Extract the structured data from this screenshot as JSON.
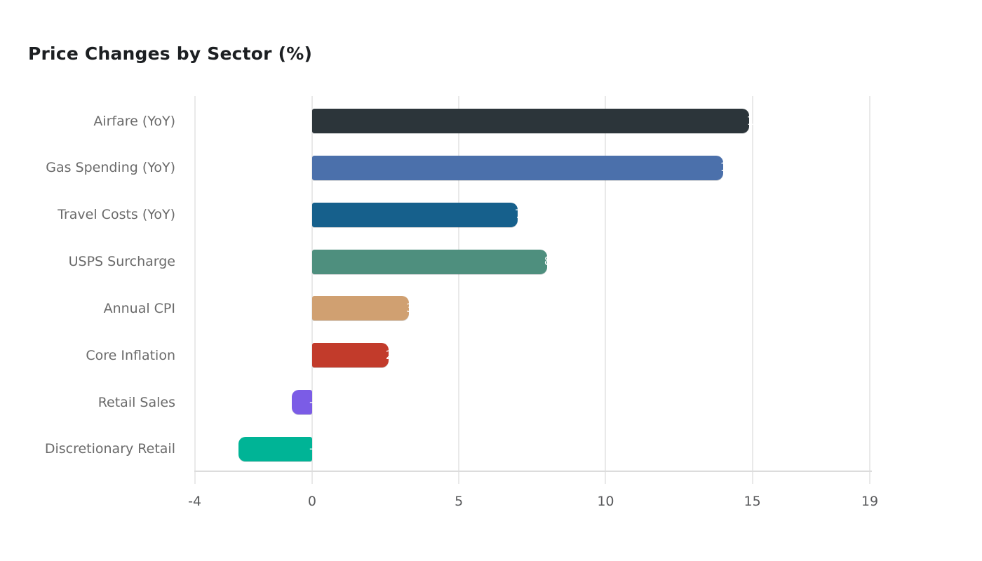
{
  "title": "Price Changes by Sector (%)",
  "colors": {
    "background": "#ffffff",
    "title_text": "#1c1f22",
    "category_label_text": "#6a6a6a",
    "tick_label_text": "#58595b",
    "gridline": "#e9e9e9",
    "axis_line": "#dcdcdc",
    "bar_value_text": "#ffffff"
  },
  "chart_data": {
    "type": "bar",
    "orientation": "horizontal",
    "title": "Price Changes by Sector (%)",
    "categories": [
      "Airfare (YoY)",
      "Gas Spending (YoY)",
      "Travel Costs (YoY)",
      "USPS Surcharge",
      "Annual CPI",
      "Core Inflation",
      "Retail Sales",
      "Discretionary Retail"
    ],
    "values": [
      14.9,
      14.0,
      7.0,
      8.0,
      3.3,
      2.6,
      -0.7,
      -2.5
    ],
    "value_labels": [
      "14.9",
      "14.0",
      "7.0",
      "8.0",
      "3.3",
      "2.6",
      "-0.7",
      "-2.5"
    ],
    "bar_colors": [
      "#2c353a",
      "#4b70ab",
      "#16608c",
      "#4e8f7e",
      "#d0a071",
      "#c23b2b",
      "#7b5ce6",
      "#00b496"
    ],
    "xlabel": "",
    "ylabel": "",
    "xlim": [
      -4,
      19
    ],
    "x_ticks": [
      -4,
      0,
      5,
      10,
      15,
      19
    ],
    "x_tick_labels": [
      "-4",
      "0",
      "5",
      "10",
      "15",
      "19"
    ],
    "grid": "vertical-only",
    "legend": "none",
    "value_label_style": "white text at bar end, clipped against white background"
  }
}
